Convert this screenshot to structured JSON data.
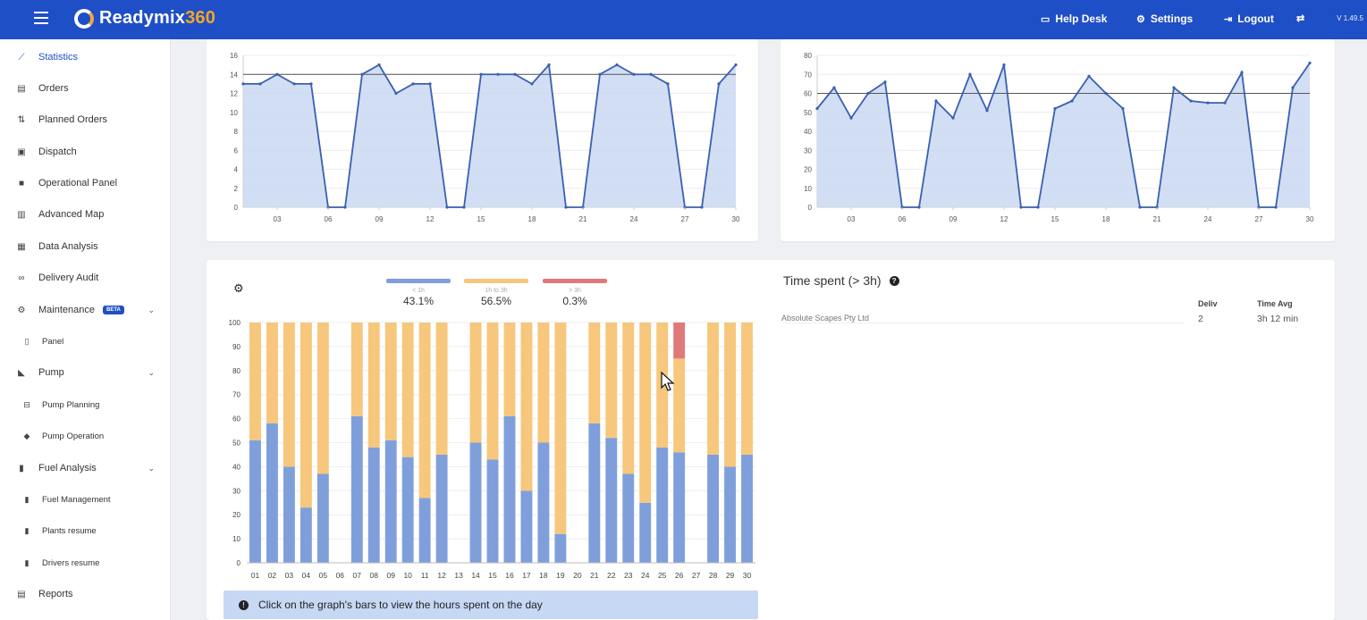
{
  "app": {
    "name_main": "Readymix",
    "name_accent": "360",
    "version": "V 1.49.5"
  },
  "topbar": {
    "help_desk": "Help Desk",
    "settings": "Settings",
    "logout": "Logout"
  },
  "sidebar": {
    "items": [
      {
        "label": "Statistics",
        "icon": "line-chart-icon",
        "active": true
      },
      {
        "label": "Orders",
        "icon": "clipboard-icon"
      },
      {
        "label": "Planned Orders",
        "icon": "planned-orders-icon"
      },
      {
        "label": "Dispatch",
        "icon": "monitor-icon"
      },
      {
        "label": "Operational Panel",
        "icon": "truck-icon"
      },
      {
        "label": "Advanced Map",
        "icon": "map-icon"
      },
      {
        "label": "Data Analysis",
        "icon": "data-icon"
      },
      {
        "label": "Delivery Audit",
        "icon": "audit-icon"
      },
      {
        "label": "Maintenance",
        "icon": "wrench-icon",
        "badge": "BETA"
      },
      {
        "label": "Panel",
        "icon": "panel-icon"
      },
      {
        "label": "Pump",
        "icon": "pump-icon"
      },
      {
        "label": "Pump Planning",
        "icon": "pump-planning-icon"
      },
      {
        "label": "Pump Operation",
        "icon": "pump-operation-icon"
      },
      {
        "label": "Fuel Analysis",
        "icon": "fuel-icon"
      },
      {
        "label": "Fuel Management",
        "icon": "fuel-management-icon"
      },
      {
        "label": "Plants resume",
        "icon": "plants-icon"
      },
      {
        "label": "Drivers resume",
        "icon": "drivers-icon"
      },
      {
        "label": "Reports",
        "icon": "reports-icon"
      }
    ]
  },
  "legend": {
    "items": [
      {
        "label": "< 1h",
        "pct": "43.1%",
        "color": "#7f9fdb"
      },
      {
        "label": "1h to 3h",
        "pct": "56.5%",
        "color": "#f6c77c"
      },
      {
        "label": "> 3h",
        "pct": "0.3%",
        "color": "#e07a7a"
      }
    ]
  },
  "info_text": "Click on the graph's bars to view the hours spent on the day",
  "time_spent": {
    "title": "Time spent (> 3h)",
    "columns": [
      "Deliv",
      "Time Avg"
    ],
    "rows": [
      {
        "client": "Absolute Scapes Pty Ltd",
        "deliv": "2",
        "time_avg": "3h 12 min"
      }
    ]
  },
  "chart_data": [
    {
      "type": "area",
      "x": [
        1,
        2,
        3,
        4,
        5,
        6,
        7,
        8,
        9,
        10,
        11,
        12,
        13,
        14,
        15,
        16,
        17,
        18,
        19,
        20,
        21,
        22,
        23,
        24,
        25,
        26,
        27,
        28,
        29,
        30
      ],
      "xticks": [
        "03",
        "06",
        "09",
        "12",
        "15",
        "18",
        "21",
        "24",
        "27",
        "30"
      ],
      "series": [
        {
          "values": [
            13,
            13,
            14,
            13,
            13,
            0,
            0,
            14,
            15,
            12,
            13,
            13,
            0,
            0,
            14,
            14,
            14,
            13,
            15,
            0,
            0,
            14,
            15,
            14,
            14,
            13,
            0,
            0,
            13,
            15
          ]
        }
      ],
      "reference_line": 14,
      "ylim": [
        0,
        16
      ],
      "yticks": [
        0,
        2,
        4,
        6,
        8,
        10,
        12,
        14,
        16
      ],
      "color": "#3b5fb0",
      "fill": "#c9d8f2"
    },
    {
      "type": "area",
      "x": [
        1,
        2,
        3,
        4,
        5,
        6,
        7,
        8,
        9,
        10,
        11,
        12,
        13,
        14,
        15,
        16,
        17,
        18,
        19,
        20,
        21,
        22,
        23,
        24,
        25,
        26,
        27,
        28,
        29,
        30
      ],
      "xticks": [
        "03",
        "06",
        "09",
        "12",
        "15",
        "18",
        "21",
        "24",
        "27",
        "30"
      ],
      "series": [
        {
          "values": [
            52,
            63,
            47,
            60,
            66,
            0,
            0,
            56,
            47,
            70,
            51,
            75,
            0,
            0,
            52,
            56,
            69,
            60,
            52,
            0,
            0,
            63,
            56,
            55,
            55,
            71,
            0,
            0,
            63,
            76
          ]
        }
      ],
      "reference_line": 60,
      "ylim": [
        0,
        80
      ],
      "yticks": [
        0,
        10,
        20,
        30,
        40,
        50,
        60,
        70,
        80
      ],
      "color": "#3b5fb0",
      "fill": "#c9d8f2"
    },
    {
      "type": "bar",
      "stacked": true,
      "categories": [
        "01",
        "02",
        "03",
        "04",
        "05",
        "06",
        "07",
        "08",
        "09",
        "10",
        "11",
        "12",
        "13",
        "14",
        "15",
        "16",
        "17",
        "18",
        "19",
        "20",
        "21",
        "22",
        "23",
        "24",
        "25",
        "26",
        "27",
        "28",
        "29",
        "30"
      ],
      "series": [
        {
          "name": "< 1h",
          "values": [
            51,
            58,
            40,
            23,
            37,
            null,
            61,
            48,
            51,
            44,
            27,
            45,
            null,
            50,
            43,
            61,
            30,
            50,
            12,
            null,
            58,
            52,
            37,
            25,
            48,
            46,
            null,
            45,
            40,
            45
          ],
          "color": "#7f9fdb"
        },
        {
          "name": "1h to 3h",
          "values": [
            49,
            42,
            60,
            77,
            63,
            null,
            39,
            52,
            49,
            56,
            73,
            55,
            null,
            50,
            57,
            39,
            70,
            50,
            88,
            null,
            42,
            48,
            63,
            75,
            52,
            39,
            null,
            55,
            60,
            55
          ],
          "color": "#f6c77c"
        },
        {
          "name": "> 3h",
          "values": [
            0,
            0,
            0,
            0,
            0,
            null,
            0,
            0,
            0,
            0,
            0,
            0,
            null,
            0,
            0,
            0,
            0,
            0,
            0,
            null,
            0,
            0,
            0,
            0,
            0,
            15,
            null,
            0,
            0,
            0
          ],
          "color": "#e07a7a"
        }
      ],
      "ylim": [
        0,
        100
      ],
      "yticks": [
        0,
        10,
        20,
        30,
        40,
        50,
        60,
        70,
        80,
        90,
        100
      ]
    }
  ]
}
